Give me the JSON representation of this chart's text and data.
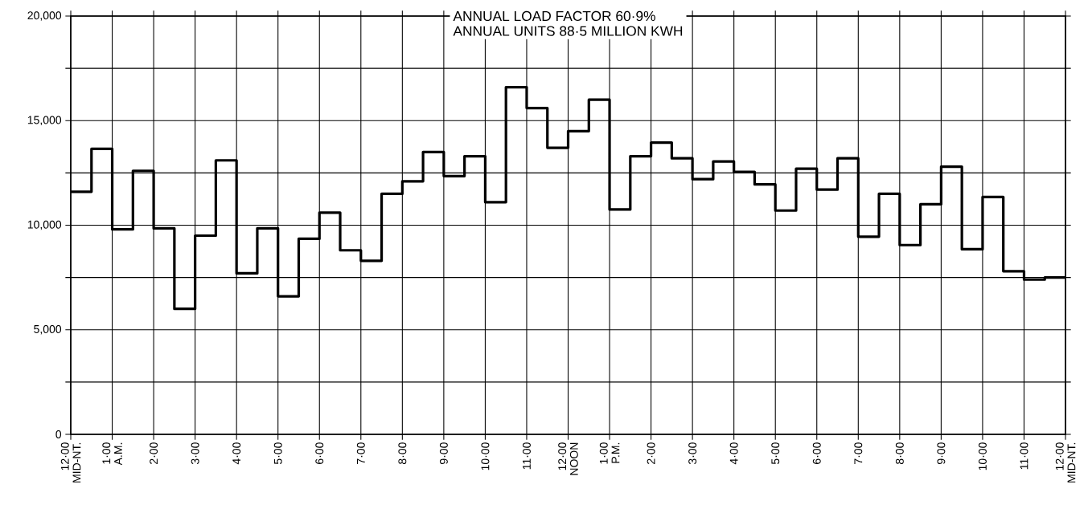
{
  "chart_data": {
    "type": "step",
    "categories": [
      "12·00 MID-NT.",
      null,
      "1·00 A.M.",
      null,
      "2·00",
      null,
      "3·00",
      null,
      "4·00",
      null,
      "5·00",
      null,
      "6·00",
      null,
      "7·00",
      null,
      "8·00",
      null,
      "9·00",
      null,
      "10·00",
      null,
      "11·00",
      null,
      "12·00 NOON",
      null,
      "1·00 P.M.",
      null,
      "2·00",
      null,
      "3·00",
      null,
      "4·00",
      null,
      "5·00",
      null,
      "6·00",
      null,
      "7·00",
      null,
      "8·00",
      null,
      "9·00",
      null,
      "10·00",
      null,
      "11·00",
      null,
      "12·00 MID-NT."
    ],
    "values": [
      11600,
      13650,
      9800,
      12600,
      9850,
      6000,
      9500,
      13100,
      7700,
      9850,
      6600,
      9350,
      10600,
      8800,
      8300,
      11500,
      12100,
      13500,
      12350,
      13300,
      11100,
      16600,
      15600,
      13700,
      14500,
      16000,
      10750,
      13300,
      13950,
      13200,
      12200,
      13050,
      12550,
      11950,
      10700,
      12700,
      11700,
      13200,
      9450,
      11500,
      9050,
      11000,
      12800,
      8850,
      11350,
      7800,
      7400,
      7500,
      7500
    ],
    "color": "#000000",
    "marker": "none",
    "line_style": "solid",
    "grid": true,
    "ylim": [
      0,
      20000
    ],
    "yticks": [
      0,
      {
        "value": 2500,
        "label": null
      },
      {
        "value": 5000,
        "label": "5,000"
      },
      {
        "value": 7500,
        "label": null
      },
      {
        "value": 10000,
        "label": "10,000"
      },
      {
        "value": 12500,
        "label": null
      },
      {
        "value": 15000,
        "label": "15,000"
      },
      {
        "value": 17500,
        "label": null
      },
      {
        "value": 20000,
        "label": "20,000"
      }
    ],
    "annotations": [
      "ANNUAL LOAD FACTOR 60·9%",
      "ANNUAL UNITS 88·5 MILLION KWH"
    ]
  }
}
